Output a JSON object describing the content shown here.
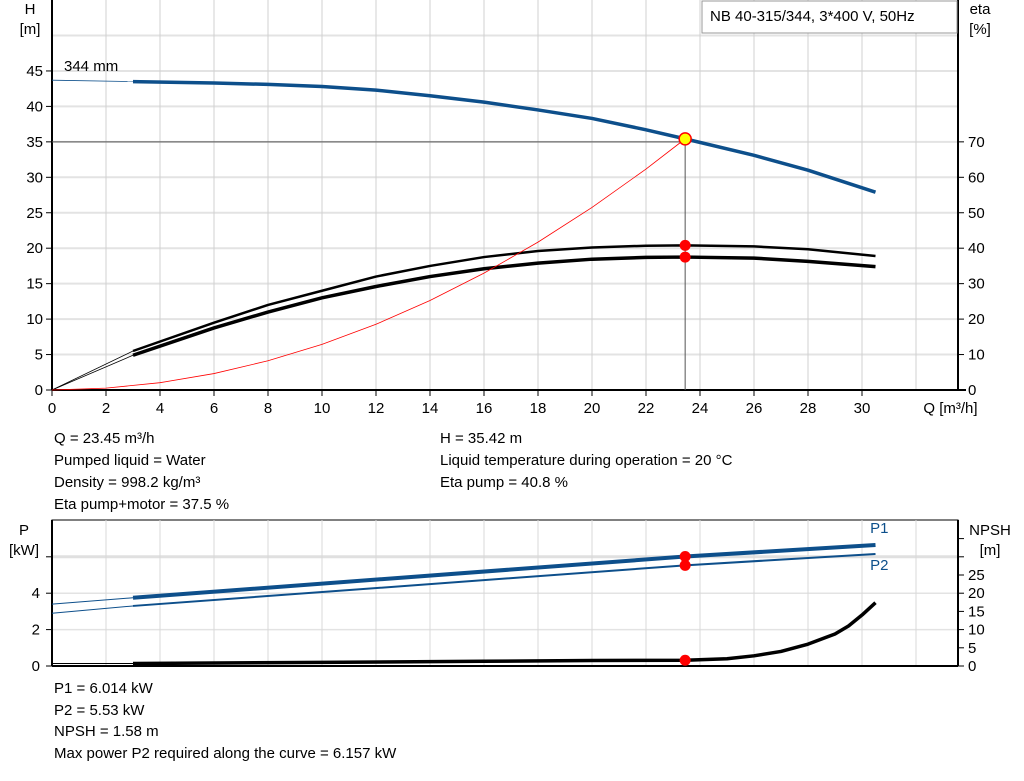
{
  "chart_data": [
    {
      "type": "line",
      "title": "NB 40-315/344, 3*400 V, 50Hz",
      "xlabel": "Q [m³/h]",
      "ylabel": "H\n[m]",
      "ylabel_left": [
        "H",
        "[m]"
      ],
      "ylabel_right": [
        "eta",
        "[%]"
      ],
      "xlim": [
        0,
        33.5
      ],
      "ylim": [
        0,
        50
      ],
      "ylim_right": [
        0,
        100
      ],
      "xticks": [
        0,
        2,
        4,
        6,
        8,
        10,
        12,
        14,
        16,
        18,
        20,
        22,
        24,
        26,
        28,
        30
      ],
      "yticks": [
        0,
        5,
        10,
        15,
        20,
        25,
        30,
        35,
        40,
        45
      ],
      "yticks_right": [
        0,
        10,
        20,
        30,
        40,
        50,
        60,
        70
      ],
      "grid": true,
      "legend": "top-right",
      "curve_label": "344 mm",
      "series": [
        {
          "name": "344 mm",
          "axis": "left",
          "color": "#0d4f8b",
          "x": [
            0,
            3,
            6,
            8,
            10,
            12,
            14,
            16,
            18,
            20,
            22,
            23.45,
            26,
            28,
            30.5
          ],
          "y": [
            43.7,
            43.5,
            43.3,
            43.1,
            42.8,
            42.3,
            41.5,
            40.6,
            39.5,
            38.3,
            36.7,
            35.42,
            33.1,
            31.0,
            27.9
          ]
        },
        {
          "axis": "right",
          "color": "#000000",
          "x": [
            0,
            3,
            6,
            8,
            10,
            12,
            14,
            16,
            18,
            20,
            22,
            23.45,
            26,
            28,
            30.5
          ],
          "y": [
            0,
            11,
            19,
            24,
            28,
            32,
            35,
            37.5,
            39.2,
            40.2,
            40.7,
            40.8,
            40.5,
            39.7,
            37.8
          ]
        },
        {
          "axis": "right",
          "color": "#000000",
          "x": [
            0,
            3,
            6,
            8,
            10,
            12,
            14,
            16,
            18,
            20,
            22,
            23.45,
            26,
            28,
            30.5
          ],
          "y": [
            0,
            9.8,
            17.5,
            22,
            26,
            29.2,
            32,
            34.2,
            35.8,
            36.9,
            37.4,
            37.5,
            37.2,
            36.3,
            34.8
          ]
        },
        {
          "axis": "left",
          "color": "#ff0000",
          "x": [
            0,
            2,
            4,
            6,
            8,
            10,
            12,
            14,
            16,
            18,
            20,
            22,
            23.45
          ],
          "y": [
            0,
            0.26,
            1.03,
            2.32,
            4.12,
            6.44,
            9.27,
            12.62,
            16.48,
            20.86,
            25.75,
            31.16,
            35.42
          ]
        }
      ],
      "operating_point": {
        "Q": 23.45,
        "H": 35.42,
        "eta_pump": 40.8,
        "eta_pump_motor": 37.5
      }
    },
    {
      "type": "line",
      "ylabel_left": [
        "P",
        "[kW]"
      ],
      "ylabel_right": [
        "NPSH",
        "[m]"
      ],
      "xlim": [
        0,
        33.5
      ],
      "ylim": [
        0,
        8
      ],
      "ylim_right": [
        0,
        40
      ],
      "yticks": [
        0,
        2,
        4
      ],
      "yticks_right": [
        0,
        5,
        10,
        15,
        20,
        25
      ],
      "grid": true,
      "series": [
        {
          "name": "P1",
          "axis": "left",
          "color": "#0d4f8b",
          "x": [
            0,
            3,
            23.45,
            30.5
          ],
          "y": [
            3.4,
            3.75,
            6.014,
            6.65
          ]
        },
        {
          "name": "P2",
          "axis": "left",
          "color": "#0d4f8b",
          "x": [
            0,
            3,
            23.45,
            30.5
          ],
          "y": [
            2.9,
            3.3,
            5.53,
            6.157
          ]
        },
        {
          "axis": "right",
          "color": "#000000",
          "x": [
            0,
            3,
            10,
            16,
            20,
            23.45,
            25,
            26,
            27,
            28,
            29,
            29.5,
            30,
            30.5
          ],
          "y": [
            0.7,
            0.7,
            1.0,
            1.3,
            1.5,
            1.58,
            2.0,
            2.8,
            4.0,
            6.0,
            8.8,
            11.0,
            14.0,
            17.4
          ]
        }
      ],
      "operating_point": {
        "Q": 23.45,
        "P1": 6.014,
        "P2": 5.53,
        "NPSH": 1.58
      }
    }
  ],
  "results_top": {
    "left": [
      "Q = 23.45 m³/h",
      "Pumped liquid = Water",
      "Density = 998.2 kg/m³",
      "Eta pump+motor = 37.5 %"
    ],
    "right": [
      "H = 35.42 m",
      "Liquid temperature during operation = 20 °C",
      "Eta pump = 40.8 %"
    ]
  },
  "results_bottom": [
    "P1 = 6.014 kW",
    "P2 = 5.53 kW",
    "NPSH = 1.58 m",
    "Max power P2 required along the curve = 6.157 kW"
  ]
}
